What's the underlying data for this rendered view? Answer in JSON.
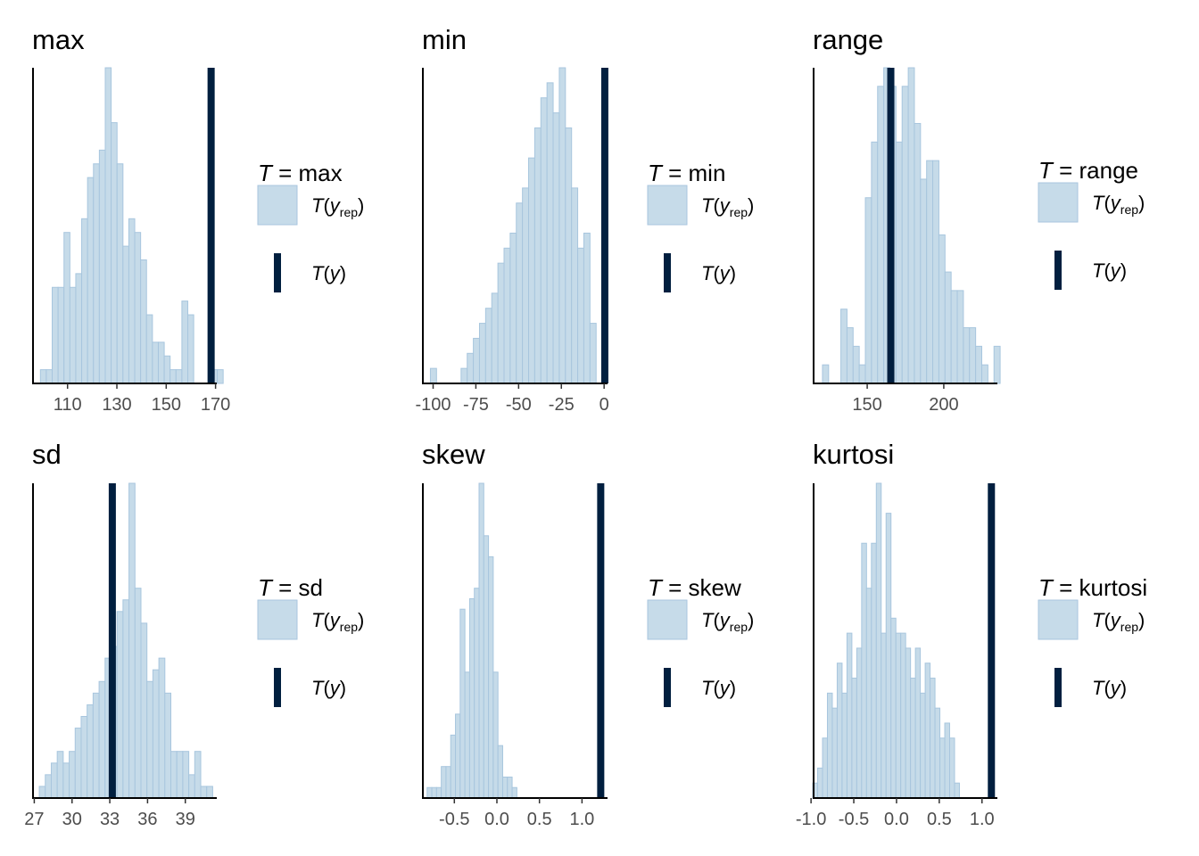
{
  "legend": {
    "yrep_label": "T(y_rep)",
    "y_label": "T(y)",
    "T_symbol": "T",
    "equals": "=",
    "y_symbol": "y",
    "rep_subscript": "rep"
  },
  "colors": {
    "bar_fill": "#c6dbe9",
    "bar_stroke": "#a8c6de",
    "observed_line": "#011f3f",
    "axis": "#000000",
    "tick_label": "#4d4d4d"
  },
  "chart_data": [
    {
      "type": "histogram",
      "title": "max",
      "stat": "max",
      "xlim": [
        96,
        170.5
      ],
      "xticks": [
        110,
        130,
        150,
        170
      ],
      "xtick_labels": [
        "110",
        "130",
        "150",
        "170"
      ],
      "bin_start": 99,
      "bin_width": 2.39,
      "counts": [
        1,
        1,
        7,
        7,
        11,
        7,
        8,
        12,
        15,
        16,
        17,
        23,
        19,
        16,
        10,
        12,
        11,
        9,
        5,
        3,
        3,
        2,
        1,
        1,
        6,
        5,
        0,
        0,
        0,
        1,
        1,
        0
      ],
      "observed": 168.2,
      "grid": false
    },
    {
      "type": "histogram",
      "title": "min",
      "stat": "min",
      "xlim": [
        -106,
        2
      ],
      "xticks": [
        -100,
        -75,
        -50,
        -25,
        0
      ],
      "xtick_labels": [
        "-100",
        "-75",
        "-50",
        "-25",
        "0"
      ],
      "bin_start": -101.6,
      "bin_width": 3.59,
      "counts": [
        1,
        0,
        0,
        0,
        0,
        1,
        2,
        3,
        4,
        5,
        6,
        8,
        9,
        10,
        12,
        13,
        15,
        17,
        19,
        20,
        18,
        21,
        17,
        13,
        9,
        10,
        4,
        0,
        0,
        0,
        0
      ],
      "observed": 0.4,
      "grid": false
    },
    {
      "type": "histogram",
      "title": "range",
      "stat": "range",
      "xlim": [
        115,
        235
      ],
      "xticks": [
        150,
        200
      ],
      "xtick_labels": [
        "150",
        "200"
      ],
      "bin_start": 120.8,
      "bin_width": 4.0,
      "counts": [
        1,
        0,
        0,
        4,
        3,
        2,
        1,
        10,
        13,
        16,
        17,
        16,
        13,
        16,
        17,
        14,
        11,
        12,
        12,
        8,
        6,
        5,
        5,
        3,
        3,
        2,
        1,
        0,
        2
      ],
      "observed": 165.4,
      "grid": false
    },
    {
      "type": "histogram",
      "title": "sd",
      "stat": "sd",
      "xlim": [
        26.9,
        41.5
      ],
      "xticks": [
        27,
        30,
        33,
        36,
        39
      ],
      "xtick_labels": [
        "27",
        "30",
        "33",
        "36",
        "39"
      ],
      "bin_start": 27.4,
      "bin_width": 0.475,
      "counts": [
        1,
        2,
        3,
        4,
        3,
        4,
        6,
        7,
        8,
        9,
        10,
        12,
        13,
        16,
        17,
        27,
        18,
        15,
        10,
        11,
        12,
        9,
        4,
        4,
        4,
        2,
        4,
        1,
        1
      ],
      "observed": 33.2,
      "grid": false
    },
    {
      "type": "histogram",
      "title": "skew",
      "stat": "skew",
      "xlim": [
        -0.87,
        1.3
      ],
      "xticks": [
        -0.5,
        0.0,
        0.5,
        1.0
      ],
      "xtick_labels": [
        "-0.5",
        "0.0",
        "0.5",
        "1.0"
      ],
      "bin_start": -0.82,
      "bin_width": 0.0555,
      "counts": [
        1,
        1,
        1,
        3,
        3,
        6,
        8,
        18,
        12,
        19,
        20,
        30,
        25,
        23,
        12,
        5,
        2,
        2,
        1,
        0,
        0,
        0
      ],
      "observed": 1.22,
      "grid": false
    },
    {
      "type": "histogram",
      "title": "kurtosi",
      "stat": "kurtosi",
      "xlim": [
        -0.97,
        1.18
      ],
      "xticks": [
        -1.0,
        -0.5,
        0.0,
        0.5,
        1.0
      ],
      "xtick_labels": [
        "-1.0",
        "-0.5",
        "0.0",
        "0.5",
        "1.0"
      ],
      "bin_start": -0.98,
      "bin_width": 0.0572,
      "counts": [
        1,
        2,
        4,
        7,
        6,
        9,
        7,
        11,
        8,
        10,
        17,
        14,
        17,
        21,
        11,
        19,
        12,
        11,
        11,
        10,
        8,
        10,
        7,
        9,
        8,
        6,
        4,
        5,
        4,
        1,
        0,
        0,
        0,
        0,
        0
      ],
      "observed": 1.11,
      "grid": false
    }
  ]
}
